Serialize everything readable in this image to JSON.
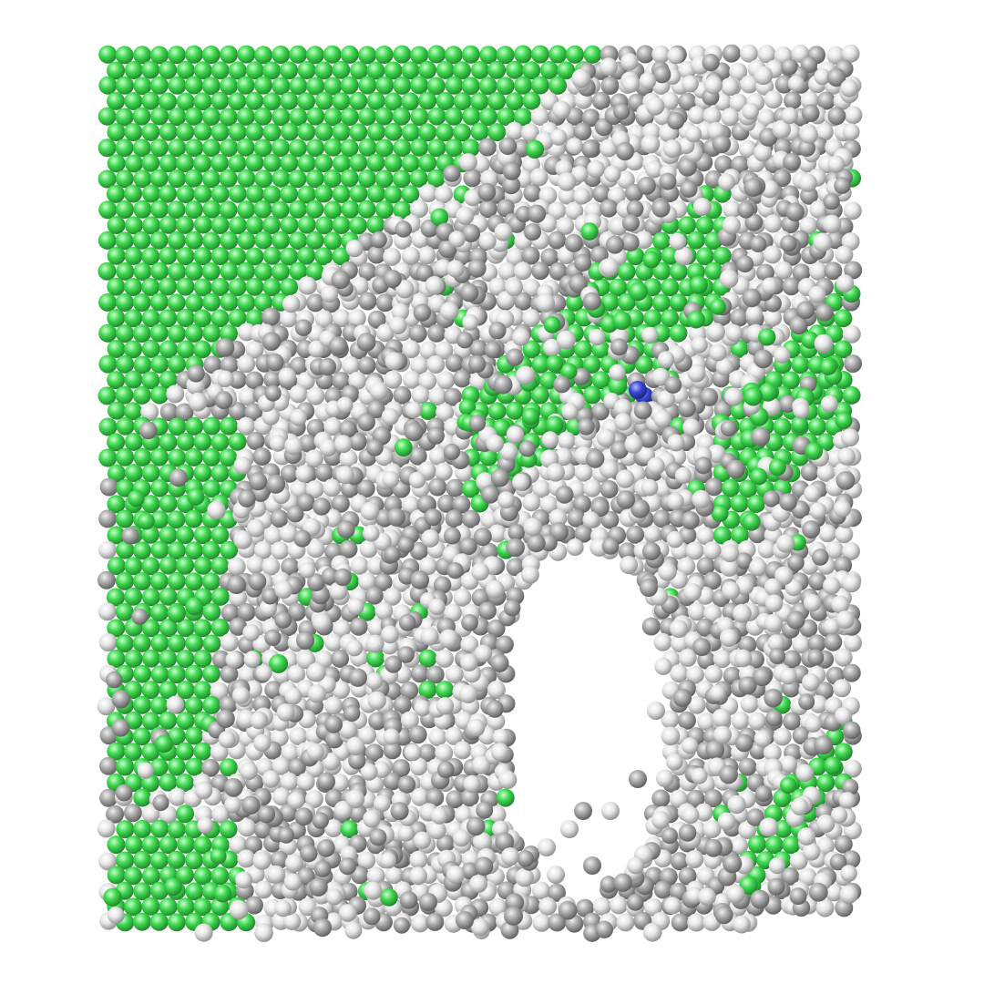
{
  "scene": {
    "subject": "atomistic-simulation-render",
    "background_color": "#ffffff",
    "species": [
      {
        "name": "green-atom",
        "base_color": "#3fd84f",
        "shade_color": "#1f7f2a",
        "highlight_color": "#c9ffcf"
      },
      {
        "name": "white-atom",
        "base_color": "#e6e6e6",
        "shade_color": "#8a8a8a",
        "highlight_color": "#ffffff"
      },
      {
        "name": "gray-atom",
        "base_color": "#a9a9a9",
        "shade_color": "#5a5a5a",
        "highlight_color": "#efefef"
      },
      {
        "name": "blue-atom",
        "base_color": "#3a46d6",
        "shade_color": "#1b2370",
        "highlight_color": "#b6bcff"
      }
    ]
  }
}
